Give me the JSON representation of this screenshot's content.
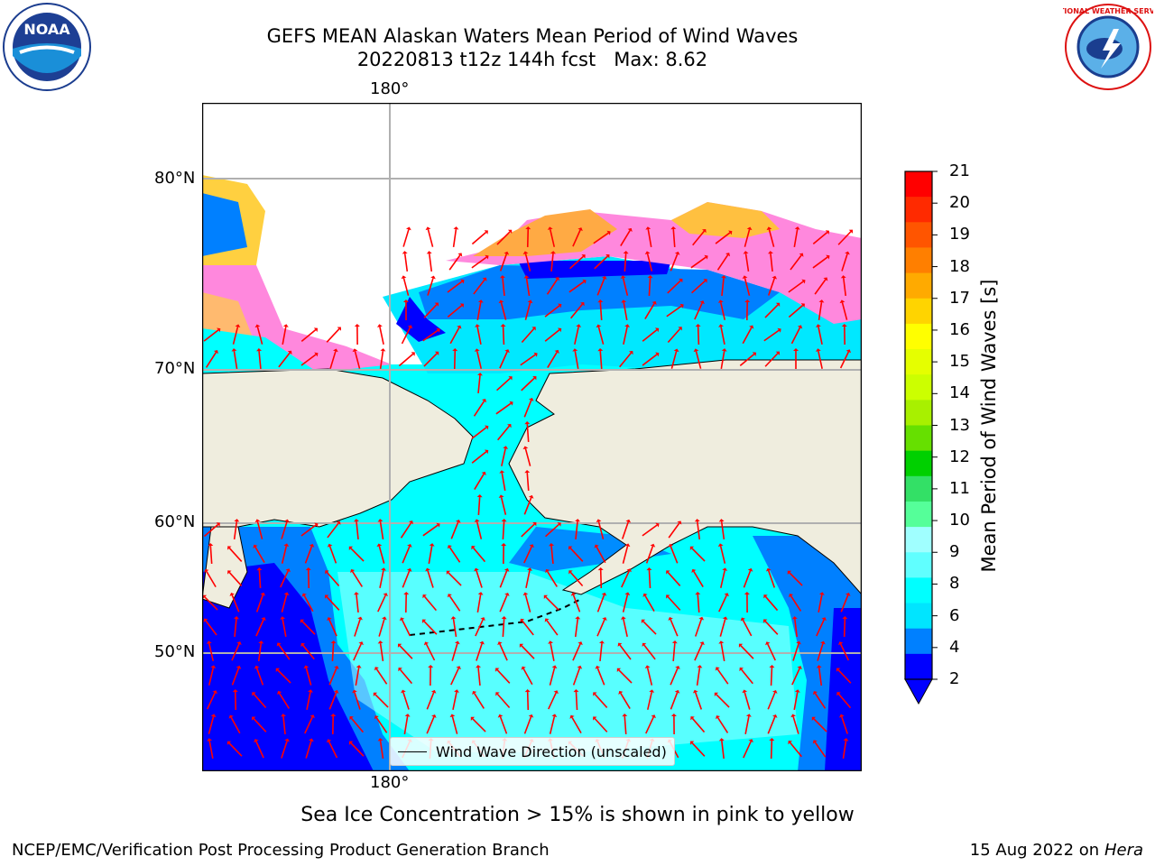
{
  "title": {
    "line1": "GEFS MEAN Alaskan Waters Mean Period of Wind Waves",
    "line2": "20220813 t12z 144h fcst   Max: 8.62"
  },
  "axes": {
    "top_lon_label": "180°",
    "bottom_lon_label": "180°",
    "lat_labels": [
      "80°N",
      "70°N",
      "60°N",
      "50°N"
    ]
  },
  "legend": {
    "wind_wave_direction": "Wind Wave Direction (unscaled)"
  },
  "colorbar": {
    "label": "Mean Period of Wind Waves [s]",
    "ticks": [
      "21",
      "20",
      "19",
      "18",
      "17",
      "16",
      "15",
      "14",
      "13",
      "12",
      "11",
      "10",
      "9",
      "8",
      "6",
      "4",
      "2"
    ],
    "colors": [
      "#ff0000",
      "#ff2a00",
      "#ff5500",
      "#ff7f00",
      "#ffaa00",
      "#ffd400",
      "#ffff00",
      "#e5ff00",
      "#ccff00",
      "#a8f000",
      "#66e000",
      "#00d000",
      "#33e066",
      "#55ff99",
      "#a0ffff",
      "#60ffff",
      "#00ffff",
      "#00e5ff",
      "#0080ff",
      "#0000ff"
    ]
  },
  "notes": {
    "sea_ice": "Sea Ice Concentration > 15% is shown in pink to yellow"
  },
  "footer": {
    "left": "NCEP/EMC/Verification Post Processing Product Generation Branch",
    "date": "15 Aug 2022 on",
    "machine": "Hera"
  },
  "logos": {
    "noaa": "NOAA",
    "nws": "NATIONAL WEATHER SERVICE"
  }
}
